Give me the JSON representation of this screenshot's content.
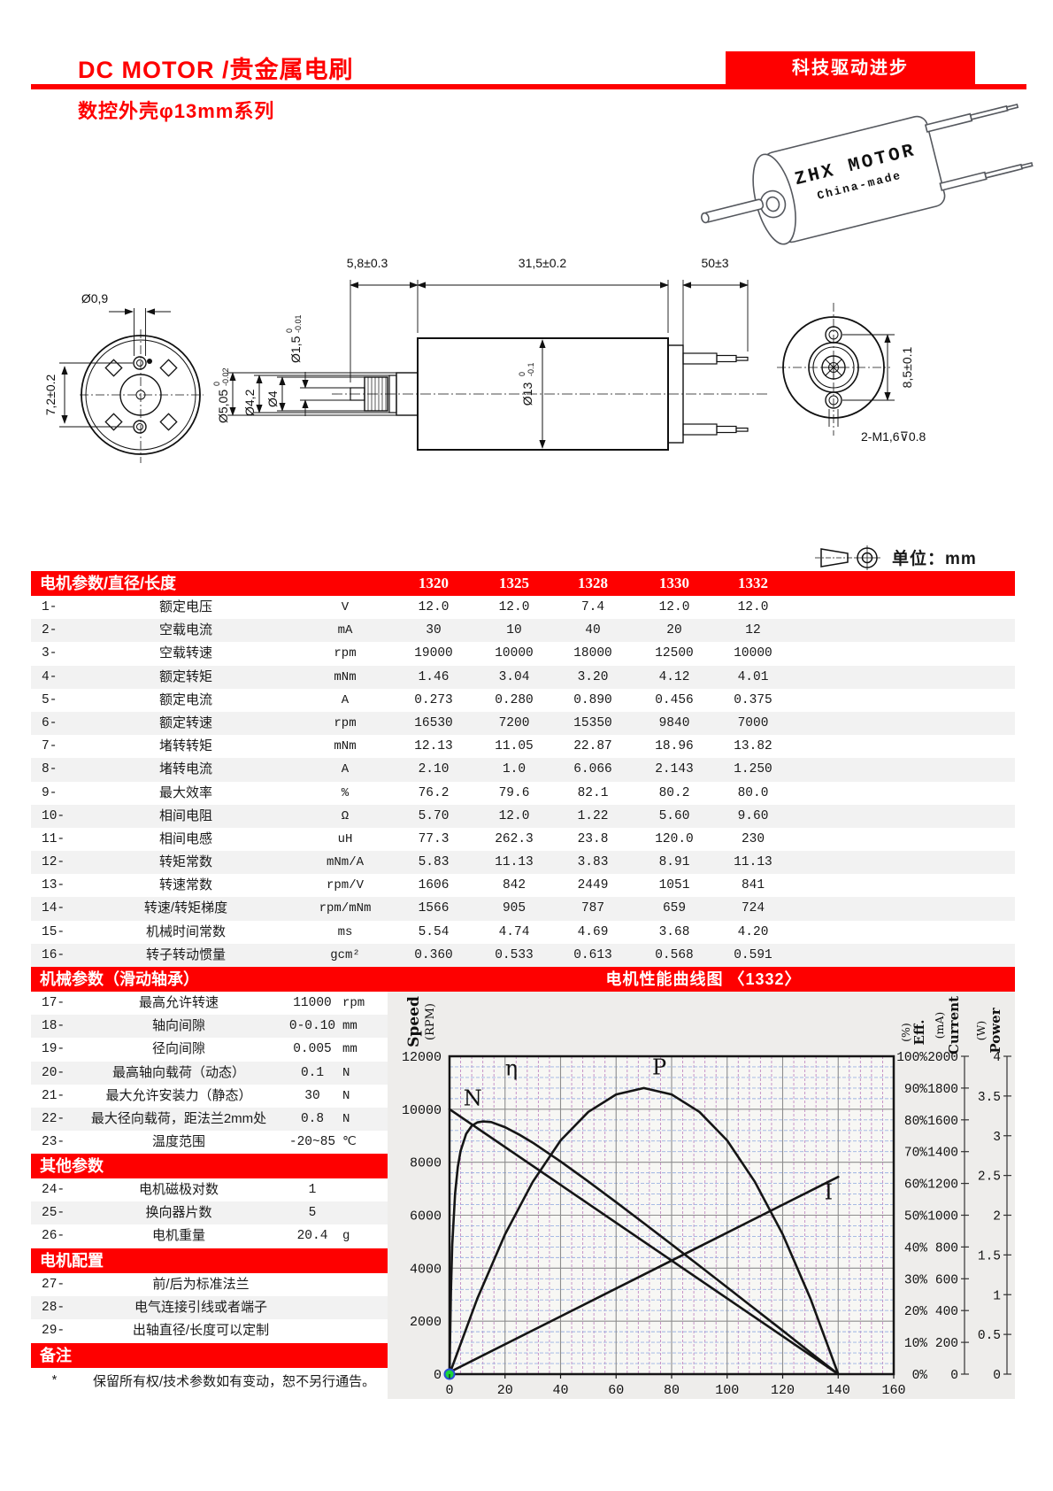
{
  "header": {
    "title": "DC MOTOR /贵金属电刷",
    "banner": "科技驱动进步",
    "subtitle": "数控外壳φ13mm系列"
  },
  "motor_sketch": {
    "brand": "ZHX MOTOR",
    "origin": "China-made",
    "brand_color": "#2a35c8"
  },
  "drawings": {
    "front": {
      "hole_dia": "Ø0,9",
      "hole_spacing": "7,2±0.2"
    },
    "side": {
      "shaft_len": "5,8±0.3",
      "body_len": "31,5±0.2",
      "lead_len": "50±3",
      "body_dia": "Ø13",
      "body_tol_top": "0",
      "body_tol_bot": "-0.1",
      "d1": "Ø5,05",
      "d1_tol_top": "0",
      "d1_tol_bot": "-0.02",
      "d2": "Ø4,2",
      "d3": "Ø4",
      "d4": "Ø1,5",
      "d4_tol_top": "0",
      "d4_tol_bot": "-0.01"
    },
    "rear": {
      "hole_spacing": "8,5±0.1",
      "thread": "2-M1,6⊽0.8"
    }
  },
  "unit_note": "单位：mm",
  "main_table": {
    "title": "电机参数/直径/长度",
    "models": [
      "1320",
      "1325",
      "1328",
      "1330",
      "1332"
    ],
    "rows": [
      {
        "no": "1-",
        "name": "额定电压",
        "unit": "V",
        "values": [
          "12.0",
          "12.0",
          "7.4",
          "12.0",
          "12.0"
        ]
      },
      {
        "no": "2-",
        "name": "空载电流",
        "unit": "mA",
        "values": [
          "30",
          "10",
          "40",
          "20",
          "12"
        ]
      },
      {
        "no": "3-",
        "name": "空载转速",
        "unit": "rpm",
        "values": [
          "19000",
          "10000",
          "18000",
          "12500",
          "10000"
        ]
      },
      {
        "no": "4-",
        "name": "额定转矩",
        "unit": "mNm",
        "values": [
          "1.46",
          "3.04",
          "3.20",
          "4.12",
          "4.01"
        ]
      },
      {
        "no": "5-",
        "name": "额定电流",
        "unit": "A",
        "values": [
          "0.273",
          "0.280",
          "0.890",
          "0.456",
          "0.375"
        ]
      },
      {
        "no": "6-",
        "name": "额定转速",
        "unit": "rpm",
        "values": [
          "16530",
          "7200",
          "15350",
          "9840",
          "7000"
        ]
      },
      {
        "no": "7-",
        "name": "堵转转矩",
        "unit": "mNm",
        "values": [
          "12.13",
          "11.05",
          "22.87",
          "18.96",
          "13.82"
        ]
      },
      {
        "no": "8-",
        "name": "堵转电流",
        "unit": "A",
        "values": [
          "2.10",
          "1.0",
          "6.066",
          "2.143",
          "1.250"
        ]
      },
      {
        "no": "9-",
        "name": "最大效率",
        "unit": "%",
        "values": [
          "76.2",
          "79.6",
          "82.1",
          "80.2",
          "80.0"
        ]
      },
      {
        "no": "10-",
        "name": "相间电阻",
        "unit": "Ω",
        "values": [
          "5.70",
          "12.0",
          "1.22",
          "5.60",
          "9.60"
        ]
      },
      {
        "no": "11-",
        "name": "相间电感",
        "unit": "uH",
        "values": [
          "77.3",
          "262.3",
          "23.8",
          "120.0",
          "230"
        ]
      },
      {
        "no": "12-",
        "name": "转矩常数",
        "unit": "mNm/A",
        "values": [
          "5.83",
          "11.13",
          "3.83",
          "8.91",
          "11.13"
        ]
      },
      {
        "no": "13-",
        "name": "转速常数",
        "unit": "rpm/V",
        "values": [
          "1606",
          "842",
          "2449",
          "1051",
          "841"
        ]
      },
      {
        "no": "14-",
        "name": "转速/转矩梯度",
        "unit": "rpm/mNm",
        "values": [
          "1566",
          "905",
          "787",
          "659",
          "724"
        ]
      },
      {
        "no": "15-",
        "name": "机械时间常数",
        "unit": "ms",
        "values": [
          "5.54",
          "4.74",
          "4.69",
          "3.68",
          "4.20"
        ]
      },
      {
        "no": "16-",
        "name": "转子转动惯量",
        "unit": "gcm²",
        "values": [
          "0.360",
          "0.533",
          "0.613",
          "0.568",
          "0.591"
        ]
      }
    ]
  },
  "mech_section": {
    "title": "机械参数（滑动轴承）",
    "rows": [
      {
        "no": "17-",
        "name": "最高允许转速",
        "value": "11000",
        "unit": "rpm"
      },
      {
        "no": "18-",
        "name": "轴向间隙",
        "value": "0-0.10",
        "unit": "mm"
      },
      {
        "no": "19-",
        "name": "径向间隙",
        "value": "0.005",
        "unit": "mm"
      },
      {
        "no": "20-",
        "name": "最高轴向载荷（动态）",
        "value": "0.1",
        "unit": "N"
      },
      {
        "no": "21-",
        "name": "最大允许安装力（静态）",
        "value": "30",
        "unit": "N"
      },
      {
        "no": "22-",
        "name": "最大径向载荷，距法兰2mm处",
        "value": "0.8",
        "unit": "N"
      },
      {
        "no": "23-",
        "name": "温度范围",
        "value": "-20~85",
        "unit": "℃"
      }
    ]
  },
  "other_section": {
    "title": "其他参数",
    "rows": [
      {
        "no": "24-",
        "name": "电机磁极对数",
        "value": "1",
        "unit": ""
      },
      {
        "no": "25-",
        "name": "换向器片数",
        "value": "5",
        "unit": ""
      },
      {
        "no": "26-",
        "name": "电机重量",
        "value": "20.4",
        "unit": "g"
      }
    ]
  },
  "config_section": {
    "title": "电机配置",
    "rows": [
      {
        "no": "27-",
        "name": "前/后为标准法兰"
      },
      {
        "no": "28-",
        "name": "电气连接引线或者端子"
      },
      {
        "no": "29-",
        "name": "出轴直径/长度可以定制"
      }
    ]
  },
  "notes_section": {
    "title": "备注",
    "mark": "*",
    "text": "保留所有权/技术参数如有变动，恕不另行通告。"
  },
  "chart": {
    "title": "电机性能曲线图 〈1332〉",
    "axis_headers": {
      "speed": {
        "label": "Speed",
        "unit": "(RPM)"
      },
      "eff": {
        "label": "Eff.",
        "unit": "(%)"
      },
      "current": {
        "label": "Current",
        "unit": "(mA)"
      },
      "power": {
        "label": "Power",
        "unit": "(W)"
      }
    },
    "curve_labels": [
      {
        "text": "η",
        "axis": "eff",
        "x": 20,
        "y": 94
      },
      {
        "text": "N",
        "axis": "speed",
        "x": 5,
        "y": 10150
      },
      {
        "text": "P",
        "axis": "power",
        "x": 73,
        "y": 3.77
      },
      {
        "text": "I",
        "axis": "current",
        "x": 135,
        "y": 1100
      }
    ]
  },
  "chart_data": {
    "type": "line",
    "title": "电机性能曲线图 〈1332〉",
    "xlabel": "",
    "x_axis": {
      "min": 0,
      "max": 160,
      "tick_step": 20,
      "minor_step": 4
    },
    "y_axes": [
      {
        "id": "speed",
        "side": "left",
        "min": 0,
        "max": 12000,
        "tick_step": 2000,
        "minor_step": 400,
        "suffix": ""
      },
      {
        "id": "eff",
        "side": "right",
        "min": 0,
        "max": 100,
        "tick_step": 10,
        "suffix": "%"
      },
      {
        "id": "current",
        "side": "right",
        "min": 0,
        "max": 2000,
        "tick_step": 200,
        "suffix": ""
      },
      {
        "id": "power",
        "side": "right",
        "min": 0,
        "max": 4,
        "tick_step": 0.5,
        "suffix": ""
      }
    ],
    "grid": true,
    "legend_position": "none",
    "series": [
      {
        "name": "N",
        "axis": "speed",
        "points": [
          [
            0,
            10000
          ],
          [
            140,
            0
          ]
        ]
      },
      {
        "name": "I",
        "axis": "current",
        "points": [
          [
            0,
            12
          ],
          [
            140,
            1241
          ]
        ]
      },
      {
        "name": "P",
        "axis": "power",
        "points": [
          [
            0,
            0
          ],
          [
            10,
            0.95
          ],
          [
            20,
            1.76
          ],
          [
            30,
            2.42
          ],
          [
            40,
            2.94
          ],
          [
            50,
            3.3
          ],
          [
            60,
            3.52
          ],
          [
            70,
            3.6
          ],
          [
            80,
            3.52
          ],
          [
            90,
            3.3
          ],
          [
            100,
            2.94
          ],
          [
            110,
            2.42
          ],
          [
            120,
            1.76
          ],
          [
            130,
            0.95
          ],
          [
            140,
            0
          ]
        ]
      },
      {
        "name": "η",
        "axis": "eff",
        "points": [
          [
            0,
            0
          ],
          [
            0.5,
            26
          ],
          [
            1,
            40.8
          ],
          [
            2,
            56.8
          ],
          [
            3,
            65.2
          ],
          [
            4,
            70.2
          ],
          [
            6,
            75.6
          ],
          [
            8,
            78.1
          ],
          [
            10,
            79.2
          ],
          [
            12,
            79.5
          ],
          [
            15,
            79.3
          ],
          [
            20,
            77.7
          ],
          [
            25,
            75.4
          ],
          [
            30,
            72.8
          ],
          [
            40,
            66.9
          ],
          [
            50,
            60.6
          ],
          [
            60,
            54.1
          ],
          [
            70,
            47.5
          ],
          [
            80,
            40.8
          ],
          [
            90,
            34.1
          ],
          [
            100,
            27.3
          ],
          [
            110,
            20.5
          ],
          [
            120,
            13.7
          ],
          [
            130,
            6.8
          ],
          [
            140,
            0
          ]
        ]
      }
    ],
    "origin_marker": {
      "x": 0,
      "y": 0,
      "fill": "#19d53a",
      "stroke": "#2b50d6"
    }
  }
}
